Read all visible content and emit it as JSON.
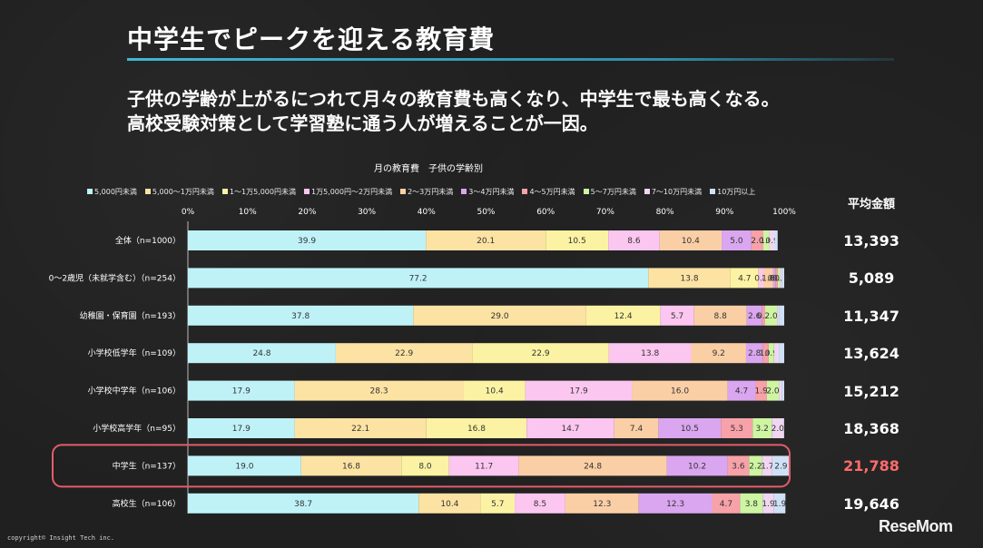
{
  "slide": {
    "title": "中学生でピークを迎える教育費",
    "subtitle_line1": "子供の学齢が上がるにつれて月々の教育費も高くなり、中学生で最も高くなる。",
    "subtitle_line2": "高校受験対策として学習塾に通う人が増えることが一因。",
    "copyright": "copyright© Insight Tech inc.",
    "logo": "ReseMom"
  },
  "average": {
    "header": "平均金額",
    "values": [
      "13,393",
      "5,089",
      "11,347",
      "13,624",
      "15,212",
      "18,368",
      "21,788",
      "19,646"
    ],
    "highlight_index": 6,
    "highlight_color": "#ff6b6b"
  },
  "chart_data": {
    "type": "bar",
    "orientation": "horizontal",
    "stacked": true,
    "percent": true,
    "title": "月の教育費　子供の学齢別",
    "xlim": [
      0,
      100
    ],
    "x_ticks": [
      "0%",
      "10%",
      "20%",
      "30%",
      "40%",
      "50%",
      "60%",
      "70%",
      "80%",
      "90%",
      "100%"
    ],
    "legend_position": "top",
    "categories": [
      "全体（n=1000）",
      "0～2歳児（未就学含む）（n=254）",
      "幼稚園・保育園（n=193）",
      "小学校低学年（n=109）",
      "小学校中学年（n=106）",
      "小学校高学年（n=95）",
      "中学生（n=137）",
      "高校生（n=106）"
    ],
    "highlight_category": "中学生（n=137）",
    "series": [
      {
        "name": "5,000円未満",
        "color": "#bff2f7",
        "values": [
          39.9,
          77.2,
          37.8,
          24.8,
          17.9,
          17.9,
          19.0,
          38.7
        ]
      },
      {
        "name": "5,000～1万円未満",
        "color": "#fde3a3",
        "values": [
          20.1,
          13.8,
          29.0,
          22.9,
          28.3,
          22.1,
          16.8,
          10.4
        ]
      },
      {
        "name": "1～1万5,000円未満",
        "color": "#fbf3a3",
        "values": [
          10.5,
          4.7,
          12.4,
          22.9,
          10.4,
          16.8,
          8.0,
          5.7
        ]
      },
      {
        "name": "1万5,000円～2万円未満",
        "color": "#fbc6ef",
        "values": [
          8.6,
          0.8,
          5.7,
          13.8,
          17.9,
          14.7,
          11.7,
          8.5
        ]
      },
      {
        "name": "2～3万円未満",
        "color": "#fbcfa6",
        "values": [
          10.4,
          1.6,
          8.8,
          9.2,
          16.0,
          7.4,
          24.8,
          12.3
        ]
      },
      {
        "name": "3～4万円未満",
        "color": "#d9a6ef",
        "values": [
          5.0,
          0.4,
          2.6,
          2.8,
          4.7,
          10.5,
          10.2,
          12.3
        ]
      },
      {
        "name": "4～5万円未満",
        "color": "#f7a1a8",
        "values": [
          2.0,
          0.4,
          0.5,
          1.0,
          1.9,
          5.3,
          3.6,
          4.7
        ]
      },
      {
        "name": "5～7万円未満",
        "color": "#cdf5a2",
        "values": [
          1.0,
          0.4,
          2.0,
          0.9,
          2.0,
          3.2,
          2.2,
          3.8
        ]
      },
      {
        "name": "7～10万円未満",
        "color": "#f0d6f0",
        "values": [
          0.9,
          0.3,
          0.3,
          0.8,
          0.5,
          2.0,
          1.7,
          1.9
        ]
      },
      {
        "name": "10万円以上",
        "color": "#cfe1f7",
        "values": [
          0.5,
          0.4,
          0.9,
          0.9,
          0.4,
          0.1,
          2.9,
          1.9
        ]
      }
    ],
    "data_labels": [
      [
        "39.9",
        "20.1",
        "10.5",
        "8.6",
        "10.4",
        "5.0",
        "2.0",
        "1.0",
        "0.9",
        ""
      ],
      [
        "77.2",
        "13.8",
        "4.7",
        "0.8",
        "1.6",
        "0.4",
        "0.4",
        "0.4",
        "0.3",
        ""
      ],
      [
        "37.8",
        "29.0",
        "12.4",
        "5.7",
        "8.8",
        "2.6",
        "0.5",
        "2.0",
        "",
        ""
      ],
      [
        "24.8",
        "22.9",
        "22.9",
        "13.8",
        "9.2",
        "2.8",
        "1.0",
        "0.9",
        "",
        ""
      ],
      [
        "17.9",
        "28.3",
        "10.4",
        "17.9",
        "16.0",
        "4.7",
        "1.9",
        "2.0",
        "",
        ""
      ],
      [
        "17.9",
        "22.1",
        "16.8",
        "14.7",
        "7.4",
        "10.5",
        "5.3",
        "3.2",
        "2.0",
        ""
      ],
      [
        "19.0",
        "16.8",
        "8.0",
        "11.7",
        "24.8",
        "10.2",
        "3.6",
        "2.2",
        "1.7",
        "2.9"
      ],
      [
        "38.7",
        "10.4",
        "5.7",
        "8.5",
        "12.3",
        "12.3",
        "4.7",
        "3.8",
        "1.9",
        "1.9"
      ]
    ]
  }
}
